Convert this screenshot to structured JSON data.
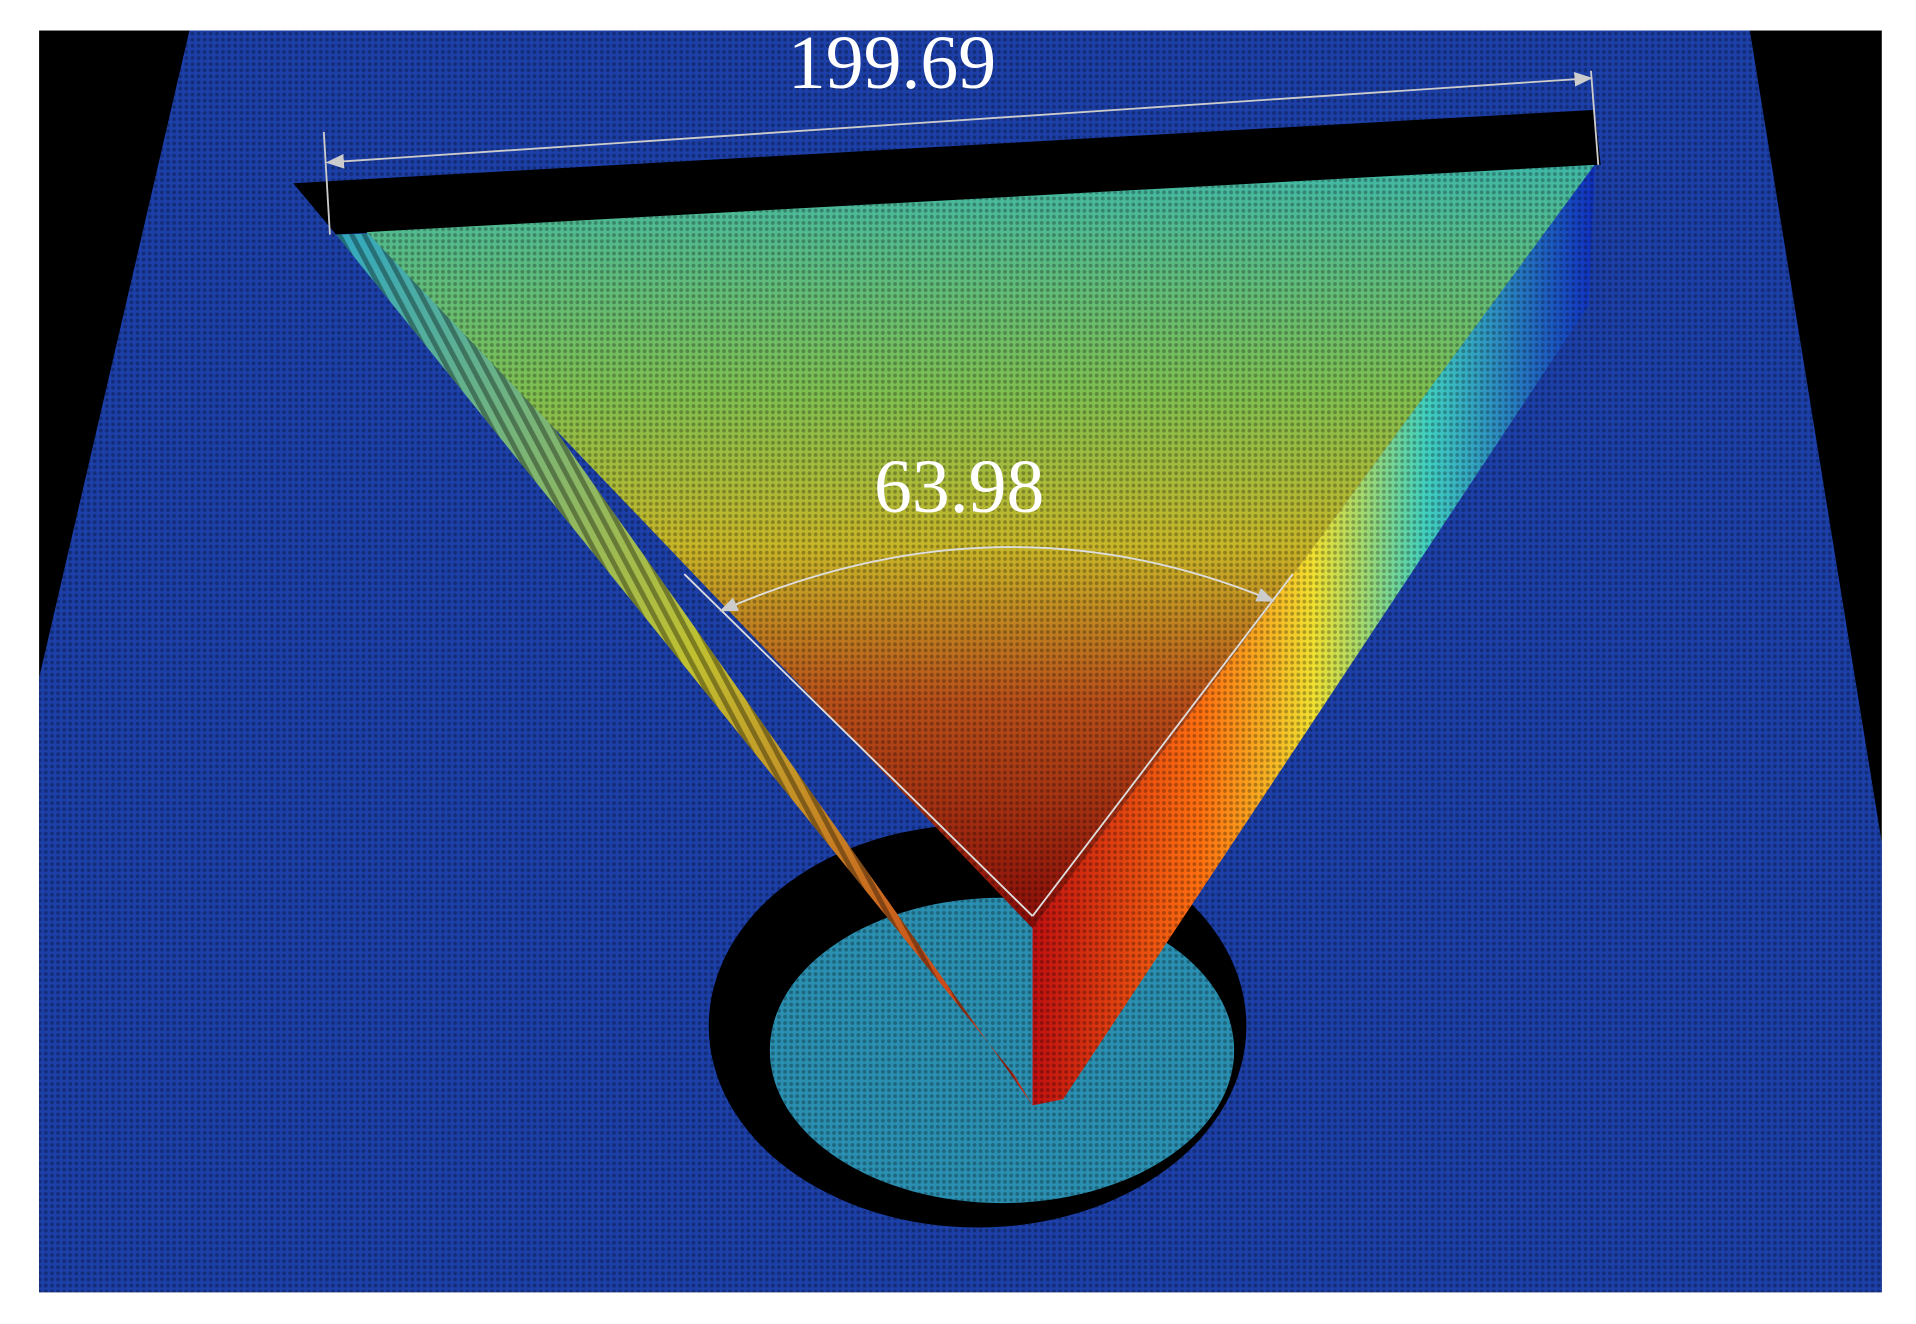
{
  "measurements": {
    "length": "199.69",
    "angle": "63.98"
  }
}
